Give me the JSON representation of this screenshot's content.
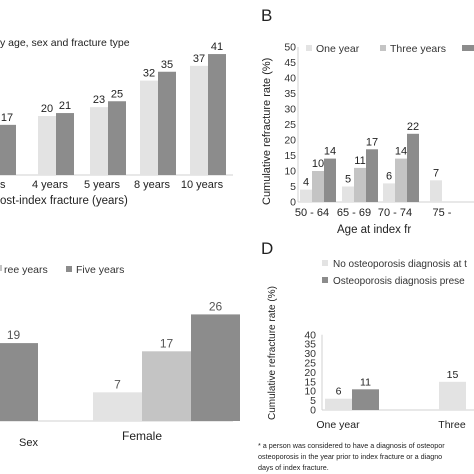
{
  "panels": {
    "A": {
      "title_fragment": "y age, sex and fracture type",
      "xlabel_fragment": "ost-index fracture (years)"
    },
    "B": {
      "letter": "B",
      "ylabel": "Cumulative refracture rate (%)",
      "xlabel": "Age at index fr",
      "legend": [
        "One year",
        "Three years"
      ]
    },
    "C": {
      "legend": [
        "ree years",
        "Five years"
      ],
      "cat_fragment": "Sex"
    },
    "D": {
      "letter": "D",
      "ylabel": "Cumulative refracture rate (%)",
      "legend": [
        "No osteoporosis diagnosis at t",
        "Osteoporosis diagnosis prese"
      ],
      "footnote": [
        "* a person was considered to have a diagnosis of osteopor",
        "osteoporosis in the year prior to index fracture or a diagno",
        "days of index fracture."
      ]
    }
  },
  "colors": {
    "one_year": "#e3e3e3",
    "three_years": "#c4c4c4",
    "five_years": "#8c8c8c",
    "axis": "#d0d0d0",
    "label": "#404040"
  },
  "chart_data": [
    {
      "panel": "A",
      "type": "bar",
      "categories": [
        "years",
        "4 years",
        "5 years",
        "8 years",
        "10 years"
      ],
      "series": [
        {
          "name": "",
          "values": [
            null,
            20,
            23,
            32,
            37
          ]
        },
        {
          "name": "",
          "values": [
            17,
            21,
            25,
            35,
            41
          ]
        }
      ],
      "xlabel": "ost-index fracture (years)"
    },
    {
      "panel": "B",
      "type": "bar",
      "categories": [
        "50 - 64",
        "65 - 69",
        "70 - 74",
        "75 -"
      ],
      "series": [
        {
          "name": "One year",
          "values": [
            4,
            5,
            6,
            7
          ]
        },
        {
          "name": "Three years",
          "values": [
            10,
            11,
            14,
            null
          ]
        },
        {
          "name": "",
          "values": [
            14,
            17,
            22,
            null
          ]
        }
      ],
      "ylim": [
        0,
        50
      ],
      "yticks": [
        0,
        5,
        10,
        15,
        20,
        25,
        30,
        35,
        40,
        45,
        50
      ],
      "ylabel": "Cumulative refracture rate (%)",
      "xlabel": "Age at index fr"
    },
    {
      "panel": "C",
      "type": "bar",
      "categories": [
        "Sex",
        "Female"
      ],
      "series": [
        {
          "name": "",
          "values": [
            null,
            7
          ]
        },
        {
          "name": "ree years",
          "values": [
            null,
            17
          ]
        },
        {
          "name": "Five years",
          "values": [
            19,
            26
          ]
        }
      ]
    },
    {
      "panel": "D",
      "type": "bar",
      "categories": [
        "One year",
        "Three"
      ],
      "series": [
        {
          "name": "No osteoporosis diagnosis at t",
          "values": [
            6,
            15
          ]
        },
        {
          "name": "Osteoporosis diagnosis prese",
          "values": [
            11,
            null
          ]
        }
      ],
      "ylim": [
        0,
        40
      ],
      "yticks": [
        0,
        5,
        10,
        15,
        20,
        25,
        30,
        35,
        40
      ],
      "ylabel": "Cumulative refracture rate (%)"
    }
  ]
}
